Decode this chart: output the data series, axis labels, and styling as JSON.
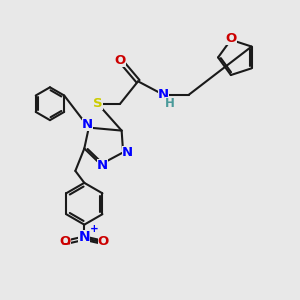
{
  "bg_color": "#e8e8e8",
  "bond_color": "#1a1a1a",
  "N_color": "#0000ff",
  "O_color": "#cc0000",
  "S_color": "#cccc00",
  "H_color": "#4a9a9a",
  "lw": 1.5,
  "fs": 9.5,
  "xlim": [
    0,
    10
  ],
  "ylim": [
    0,
    10
  ]
}
